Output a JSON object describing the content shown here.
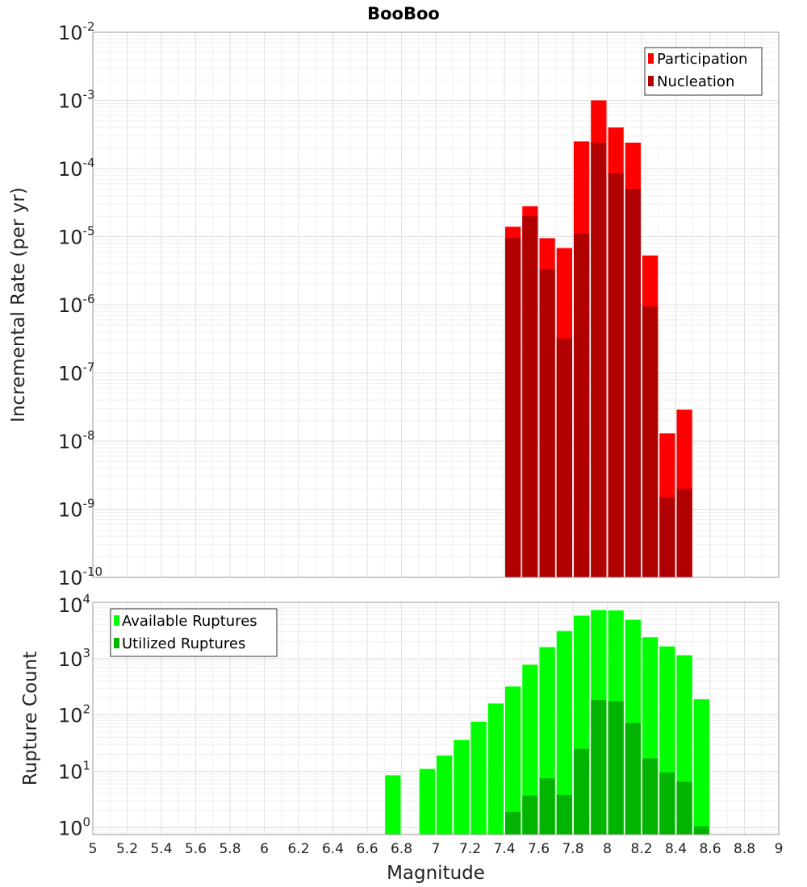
{
  "chart_data": [
    {
      "type": "bar",
      "title": "BooBoo",
      "xlabel": "",
      "ylabel": "Incremental Rate (per yr)",
      "yscale": "log",
      "ylim": [
        1e-10,
        0.01
      ],
      "xlim": [
        5,
        9
      ],
      "ytick_labels": [
        {
          "base": "10",
          "exp": "-2",
          "value": 0.01
        },
        {
          "base": "10",
          "exp": "-3",
          "value": 0.001
        },
        {
          "base": "10",
          "exp": "-4",
          "value": 0.0001
        },
        {
          "base": "10",
          "exp": "-5",
          "value": 1e-05
        },
        {
          "base": "10",
          "exp": "-6",
          "value": 1e-06
        },
        {
          "base": "10",
          "exp": "-7",
          "value": 1e-07
        },
        {
          "base": "10",
          "exp": "-8",
          "value": 1e-08
        },
        {
          "base": "10",
          "exp": "-9",
          "value": 1e-09
        },
        {
          "base": "10",
          "exp": "-10",
          "value": 1e-10
        }
      ],
      "grid": true,
      "legend_position": "top-right",
      "bar_width": 0.1,
      "x": [
        7.45,
        7.55,
        7.65,
        7.75,
        7.85,
        7.95,
        8.05,
        8.15,
        8.25,
        8.35,
        8.45
      ],
      "series": [
        {
          "name": "Participation",
          "color": "#ff0000",
          "values": [
            1.4e-05,
            2.8e-05,
            9.5e-06,
            6.8e-06,
            0.00025,
            0.001,
            0.0004,
            0.00024,
            5.3e-06,
            1.3e-08,
            2.9e-08
          ]
        },
        {
          "name": "Nucleation",
          "color": "#b00000",
          "values": [
            9.5e-06,
            2e-05,
            3.3e-06,
            3.2e-07,
            1.1e-05,
            0.00024,
            8.5e-05,
            5e-05,
            9.5e-07,
            1.5e-09,
            2e-09
          ]
        }
      ]
    },
    {
      "type": "bar",
      "title": "",
      "xlabel": "Magnitude",
      "ylabel": "Rupture Count",
      "yscale": "log",
      "ylim": [
        0.75,
        10000
      ],
      "xlim": [
        5,
        9
      ],
      "ytick_labels": [
        {
          "base": "10",
          "exp": "4",
          "value": 10000
        },
        {
          "base": "10",
          "exp": "3",
          "value": 1000
        },
        {
          "base": "10",
          "exp": "2",
          "value": 100
        },
        {
          "base": "10",
          "exp": "1",
          "value": 10
        },
        {
          "base": "10",
          "exp": "0",
          "value": 1
        }
      ],
      "xticks": [
        "5",
        "5.2",
        "5.4",
        "5.6",
        "5.8",
        "6",
        "6.2",
        "6.4",
        "6.6",
        "6.8",
        "7",
        "7.2",
        "7.4",
        "7.6",
        "7.8",
        "8",
        "8.2",
        "8.4",
        "8.6",
        "8.8",
        "9"
      ],
      "grid": true,
      "legend_position": "top-left",
      "bar_width": 0.1,
      "x": [
        6.75,
        6.95,
        7.05,
        7.15,
        7.25,
        7.35,
        7.45,
        7.55,
        7.65,
        7.75,
        7.85,
        7.95,
        8.05,
        8.15,
        8.25,
        8.35,
        8.45,
        8.55
      ],
      "series": [
        {
          "name": "Available Ruptures",
          "color": "#00ff00",
          "values": [
            8.5,
            11,
            19,
            36,
            76,
            160,
            320,
            780,
            1600,
            3100,
            5800,
            7300,
            7200,
            4900,
            2400,
            1650,
            1150,
            190
          ]
        },
        {
          "name": "Utilized Ruptures",
          "color": "#00b400",
          "values": [
            0,
            0,
            0,
            0,
            0,
            0,
            1.9,
            3.7,
            7.5,
            3.8,
            25,
            185,
            175,
            72,
            17,
            9.5,
            6.5,
            1.05
          ]
        }
      ]
    }
  ]
}
